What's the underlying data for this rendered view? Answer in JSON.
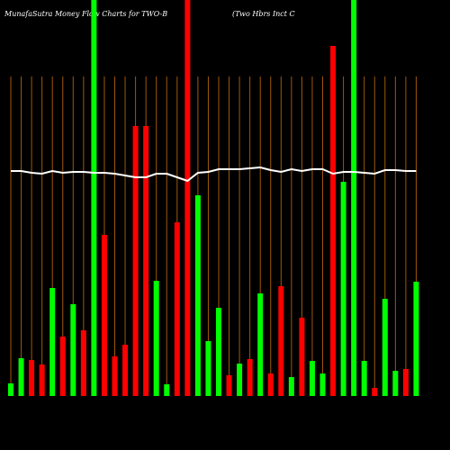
{
  "chart_data": {
    "type": "bar",
    "title": "MunafaSutra  Money Flow  Charts for TWO-B",
    "subtitle": "(Two  Hbrs Inct C",
    "categories": [
      null,
      null,
      null,
      null,
      null,
      null,
      null,
      null,
      null,
      null,
      null,
      null,
      null,
      null,
      null,
      null,
      null,
      null,
      null,
      null,
      null,
      null,
      null,
      null,
      null,
      null,
      null,
      null,
      null,
      null,
      null,
      null,
      null,
      null,
      null,
      null,
      null,
      null,
      null,
      null
    ],
    "values": [
      14,
      42,
      40,
      35,
      120,
      66,
      102,
      73,
      440,
      179,
      44,
      57,
      300,
      300,
      128,
      13,
      193,
      440,
      223,
      61,
      98,
      23,
      36,
      41,
      114,
      25,
      122,
      21,
      87,
      39,
      25,
      389,
      238,
      440,
      39,
      9,
      108,
      28,
      30,
      127
    ],
    "colors": [
      "#00ff00",
      "#00ff00",
      "#ff0000",
      "#ff0000",
      "#00ff00",
      "#ff0000",
      "#00ff00",
      "#ff0000",
      "#00ff00",
      "#ff0000",
      "#ff0000",
      "#ff0000",
      "#ff0000",
      "#ff0000",
      "#00ff00",
      "#00ff00",
      "#ff0000",
      "#ff0000",
      "#00ff00",
      "#00ff00",
      "#00ff00",
      "#ff0000",
      "#00ff00",
      "#ff0000",
      "#00ff00",
      "#ff0000",
      "#ff0000",
      "#00ff00",
      "#ff0000",
      "#00ff00",
      "#00ff00",
      "#ff0000",
      "#00ff00",
      "#00ff00",
      "#00ff00",
      "#ff0000",
      "#00ff00",
      "#00ff00",
      "#ff0000",
      "#00ff00"
    ],
    "line_values": [
      250,
      250,
      248,
      247,
      250,
      248,
      249,
      249,
      248,
      248,
      247,
      245,
      243,
      243,
      247,
      247,
      243,
      239,
      248,
      249,
      252,
      252,
      252,
      253,
      254,
      251,
      249,
      252,
      250,
      252,
      252,
      247,
      249,
      249,
      248,
      247,
      251,
      251,
      250,
      250
    ],
    "line_color": "#ffffff",
    "grid_color": "#a0580a",
    "ylim": [
      0,
      440
    ]
  }
}
